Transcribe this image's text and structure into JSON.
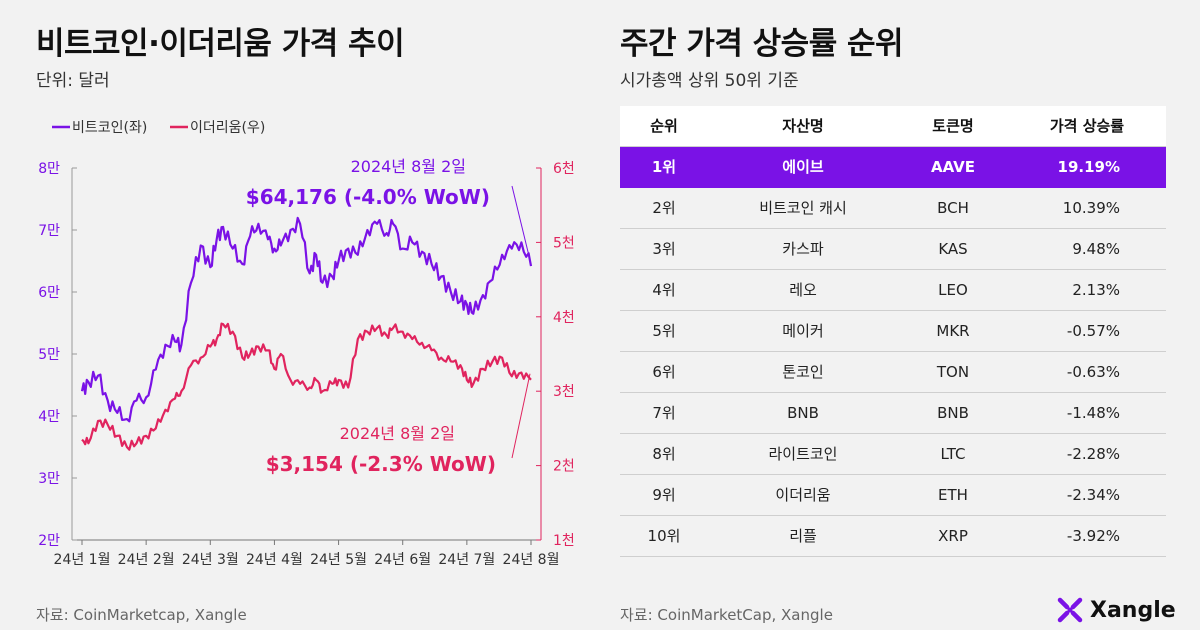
{
  "left": {
    "title": "비트코인·이더리움 가격 추이",
    "subtitle": "단위: 달러",
    "source": "자료: CoinMarketcap, Xangle"
  },
  "right": {
    "title": "주간 가격 상승률 순위",
    "subtitle": "시가총액 상위 50위 기준",
    "source": "자료: CoinMarketCap, Xangle",
    "columns": [
      "순위",
      "자산명",
      "토큰명",
      "가격 상승률"
    ],
    "rows": [
      {
        "rank": "1위",
        "asset": "에이브",
        "token": "AAVE",
        "pct": "19.19%"
      },
      {
        "rank": "2위",
        "asset": "비트코인 캐시",
        "token": "BCH",
        "pct": "10.39%"
      },
      {
        "rank": "3위",
        "asset": "카스파",
        "token": "KAS",
        "pct": "9.48%"
      },
      {
        "rank": "4위",
        "asset": "레오",
        "token": "LEO",
        "pct": "2.13%"
      },
      {
        "rank": "5위",
        "asset": "메이커",
        "token": "MKR",
        "pct": "-0.57%"
      },
      {
        "rank": "6위",
        "asset": "톤코인",
        "token": "TON",
        "pct": "-0.63%"
      },
      {
        "rank": "7위",
        "asset": "BNB",
        "token": "BNB",
        "pct": "-1.48%"
      },
      {
        "rank": "8위",
        "asset": "라이트코인",
        "token": "LTC",
        "pct": "-2.28%"
      },
      {
        "rank": "9위",
        "asset": "이더리움",
        "token": "ETH",
        "pct": "-2.34%"
      },
      {
        "rank": "10위",
        "asset": "리플",
        "token": "XRP",
        "pct": "-3.92%"
      }
    ]
  },
  "logo": {
    "text": "Xangle",
    "icon": "xangle-x-icon"
  },
  "colors": {
    "btc": "#7a12e6",
    "eth": "#e0245e",
    "highlight": "#7a12e6"
  },
  "chart_data": {
    "type": "line",
    "legend": [
      "비트코인(좌)",
      "이더리움(우)"
    ],
    "legend_position": "top-left",
    "x_ticks": [
      "24년 1월",
      "24년 2월",
      "24년 3월",
      "24년 4월",
      "24년 5월",
      "24년 6월",
      "24년 7월",
      "24년 8월"
    ],
    "y_left_ticks": [
      "2만",
      "3만",
      "4만",
      "5만",
      "6만",
      "7만",
      "8만"
    ],
    "y_left_range": [
      20000,
      80000
    ],
    "y_right_ticks": [
      "1천",
      "2천",
      "3천",
      "4천",
      "5천",
      "6천"
    ],
    "y_right_range": [
      1000,
      6000
    ],
    "grid": false,
    "series": [
      {
        "name": "비트코인(좌)",
        "axis": "left",
        "month_index": [
          0,
          0.1,
          0.25,
          0.4,
          0.55,
          0.7,
          0.85,
          1.0,
          1.15,
          1.3,
          1.45,
          1.55,
          1.7,
          1.85,
          2.0,
          2.1,
          2.2,
          2.35,
          2.5,
          2.62,
          2.75,
          2.9,
          3.0,
          3.1,
          3.25,
          3.4,
          3.55,
          3.65,
          3.75,
          3.9,
          4.0,
          4.15,
          4.3,
          4.45,
          4.6,
          4.75,
          4.85,
          5.0,
          5.15,
          5.3,
          5.45,
          5.6,
          5.75,
          5.9,
          6.0,
          6.1,
          6.25,
          6.4,
          6.55,
          6.7,
          6.85,
          7.0
        ],
        "values": [
          44000,
          45500,
          46500,
          42500,
          40500,
          39500,
          42500,
          43000,
          47500,
          51500,
          52000,
          51500,
          61500,
          67500,
          64000,
          68500,
          70500,
          67000,
          64500,
          69000,
          71000,
          68500,
          67000,
          67500,
          70000,
          71000,
          63000,
          66000,
          61500,
          62500,
          65000,
          67000,
          66000,
          70000,
          71000,
          69500,
          71000,
          67000,
          68000,
          66500,
          64500,
          62500,
          60000,
          58500,
          58000,
          56500,
          59500,
          62000,
          66000,
          67000,
          68000,
          64176
        ]
      },
      {
        "name": "이더리움(우)",
        "axis": "right",
        "month_index": [
          0,
          0.1,
          0.25,
          0.4,
          0.55,
          0.7,
          0.85,
          1.0,
          1.15,
          1.3,
          1.45,
          1.55,
          1.7,
          1.85,
          2.0,
          2.1,
          2.2,
          2.35,
          2.5,
          2.62,
          2.75,
          2.9,
          3.0,
          3.1,
          3.25,
          3.4,
          3.55,
          3.65,
          3.75,
          3.9,
          4.0,
          4.15,
          4.3,
          4.45,
          4.6,
          4.75,
          4.85,
          5.0,
          5.15,
          5.3,
          5.45,
          5.6,
          5.75,
          5.9,
          6.0,
          6.1,
          6.25,
          6.4,
          6.55,
          6.7,
          6.85,
          7.0
        ],
        "values": [
          2350,
          2300,
          2600,
          2550,
          2400,
          2250,
          2300,
          2400,
          2500,
          2750,
          2900,
          3000,
          3350,
          3450,
          3600,
          3700,
          3900,
          3800,
          3450,
          3500,
          3600,
          3550,
          3300,
          3500,
          3150,
          3100,
          3050,
          3150,
          3000,
          3100,
          3150,
          3050,
          3700,
          3800,
          3850,
          3750,
          3850,
          3800,
          3700,
          3650,
          3550,
          3450,
          3400,
          3350,
          3150,
          3100,
          3300,
          3400,
          3450,
          3200,
          3250,
          3154
        ]
      }
    ],
    "annotations": [
      {
        "date": "2024년 8월 2일",
        "value_text": "$64,176 (-4.0% WoW)",
        "series": "비트코인(좌)"
      },
      {
        "date": "2024년 8월 2일",
        "value_text": "$3,154 (-2.3% WoW)",
        "series": "이더리움(우)"
      }
    ]
  }
}
